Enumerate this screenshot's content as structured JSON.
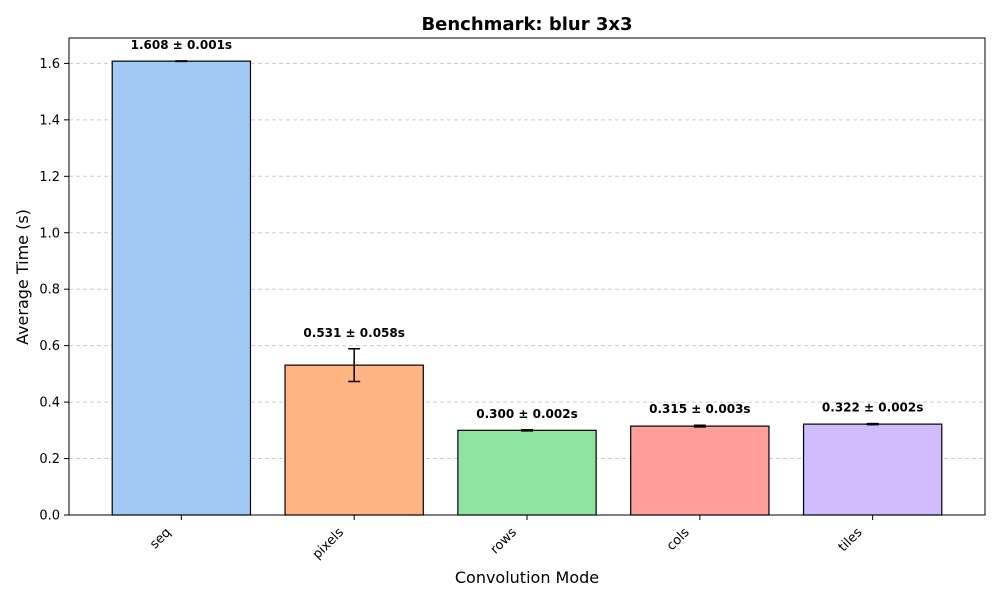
{
  "chart_data": {
    "type": "bar",
    "title": "Benchmark: blur 3x3",
    "xlabel": "Convolution Mode",
    "ylabel": "Average Time (s)",
    "categories": [
      "seq",
      "pixels",
      "rows",
      "cols",
      "tiles"
    ],
    "values": [
      1.608,
      0.531,
      0.3,
      0.315,
      0.322
    ],
    "errors": [
      0.001,
      0.058,
      0.002,
      0.003,
      0.002
    ],
    "data_labels": [
      "1.608 ± 0.001s",
      "0.531 ± 0.058s",
      "0.300 ± 0.002s",
      "0.315 ± 0.003s",
      "0.322 ± 0.002s"
    ],
    "colors": [
      "#a1c9f4",
      "#ffb482",
      "#8de5a1",
      "#ff9f9b",
      "#d0bbff"
    ],
    "ylim": [
      0,
      1.69
    ],
    "yticks": [
      0.0,
      0.2,
      0.4,
      0.6,
      0.8,
      1.0,
      1.2,
      1.4,
      1.6
    ],
    "ytick_labels": [
      "0.0",
      "0.2",
      "0.4",
      "0.6",
      "0.8",
      "1.0",
      "1.2",
      "1.4",
      "1.6"
    ],
    "grid": "y-dashed",
    "legend": "none"
  }
}
